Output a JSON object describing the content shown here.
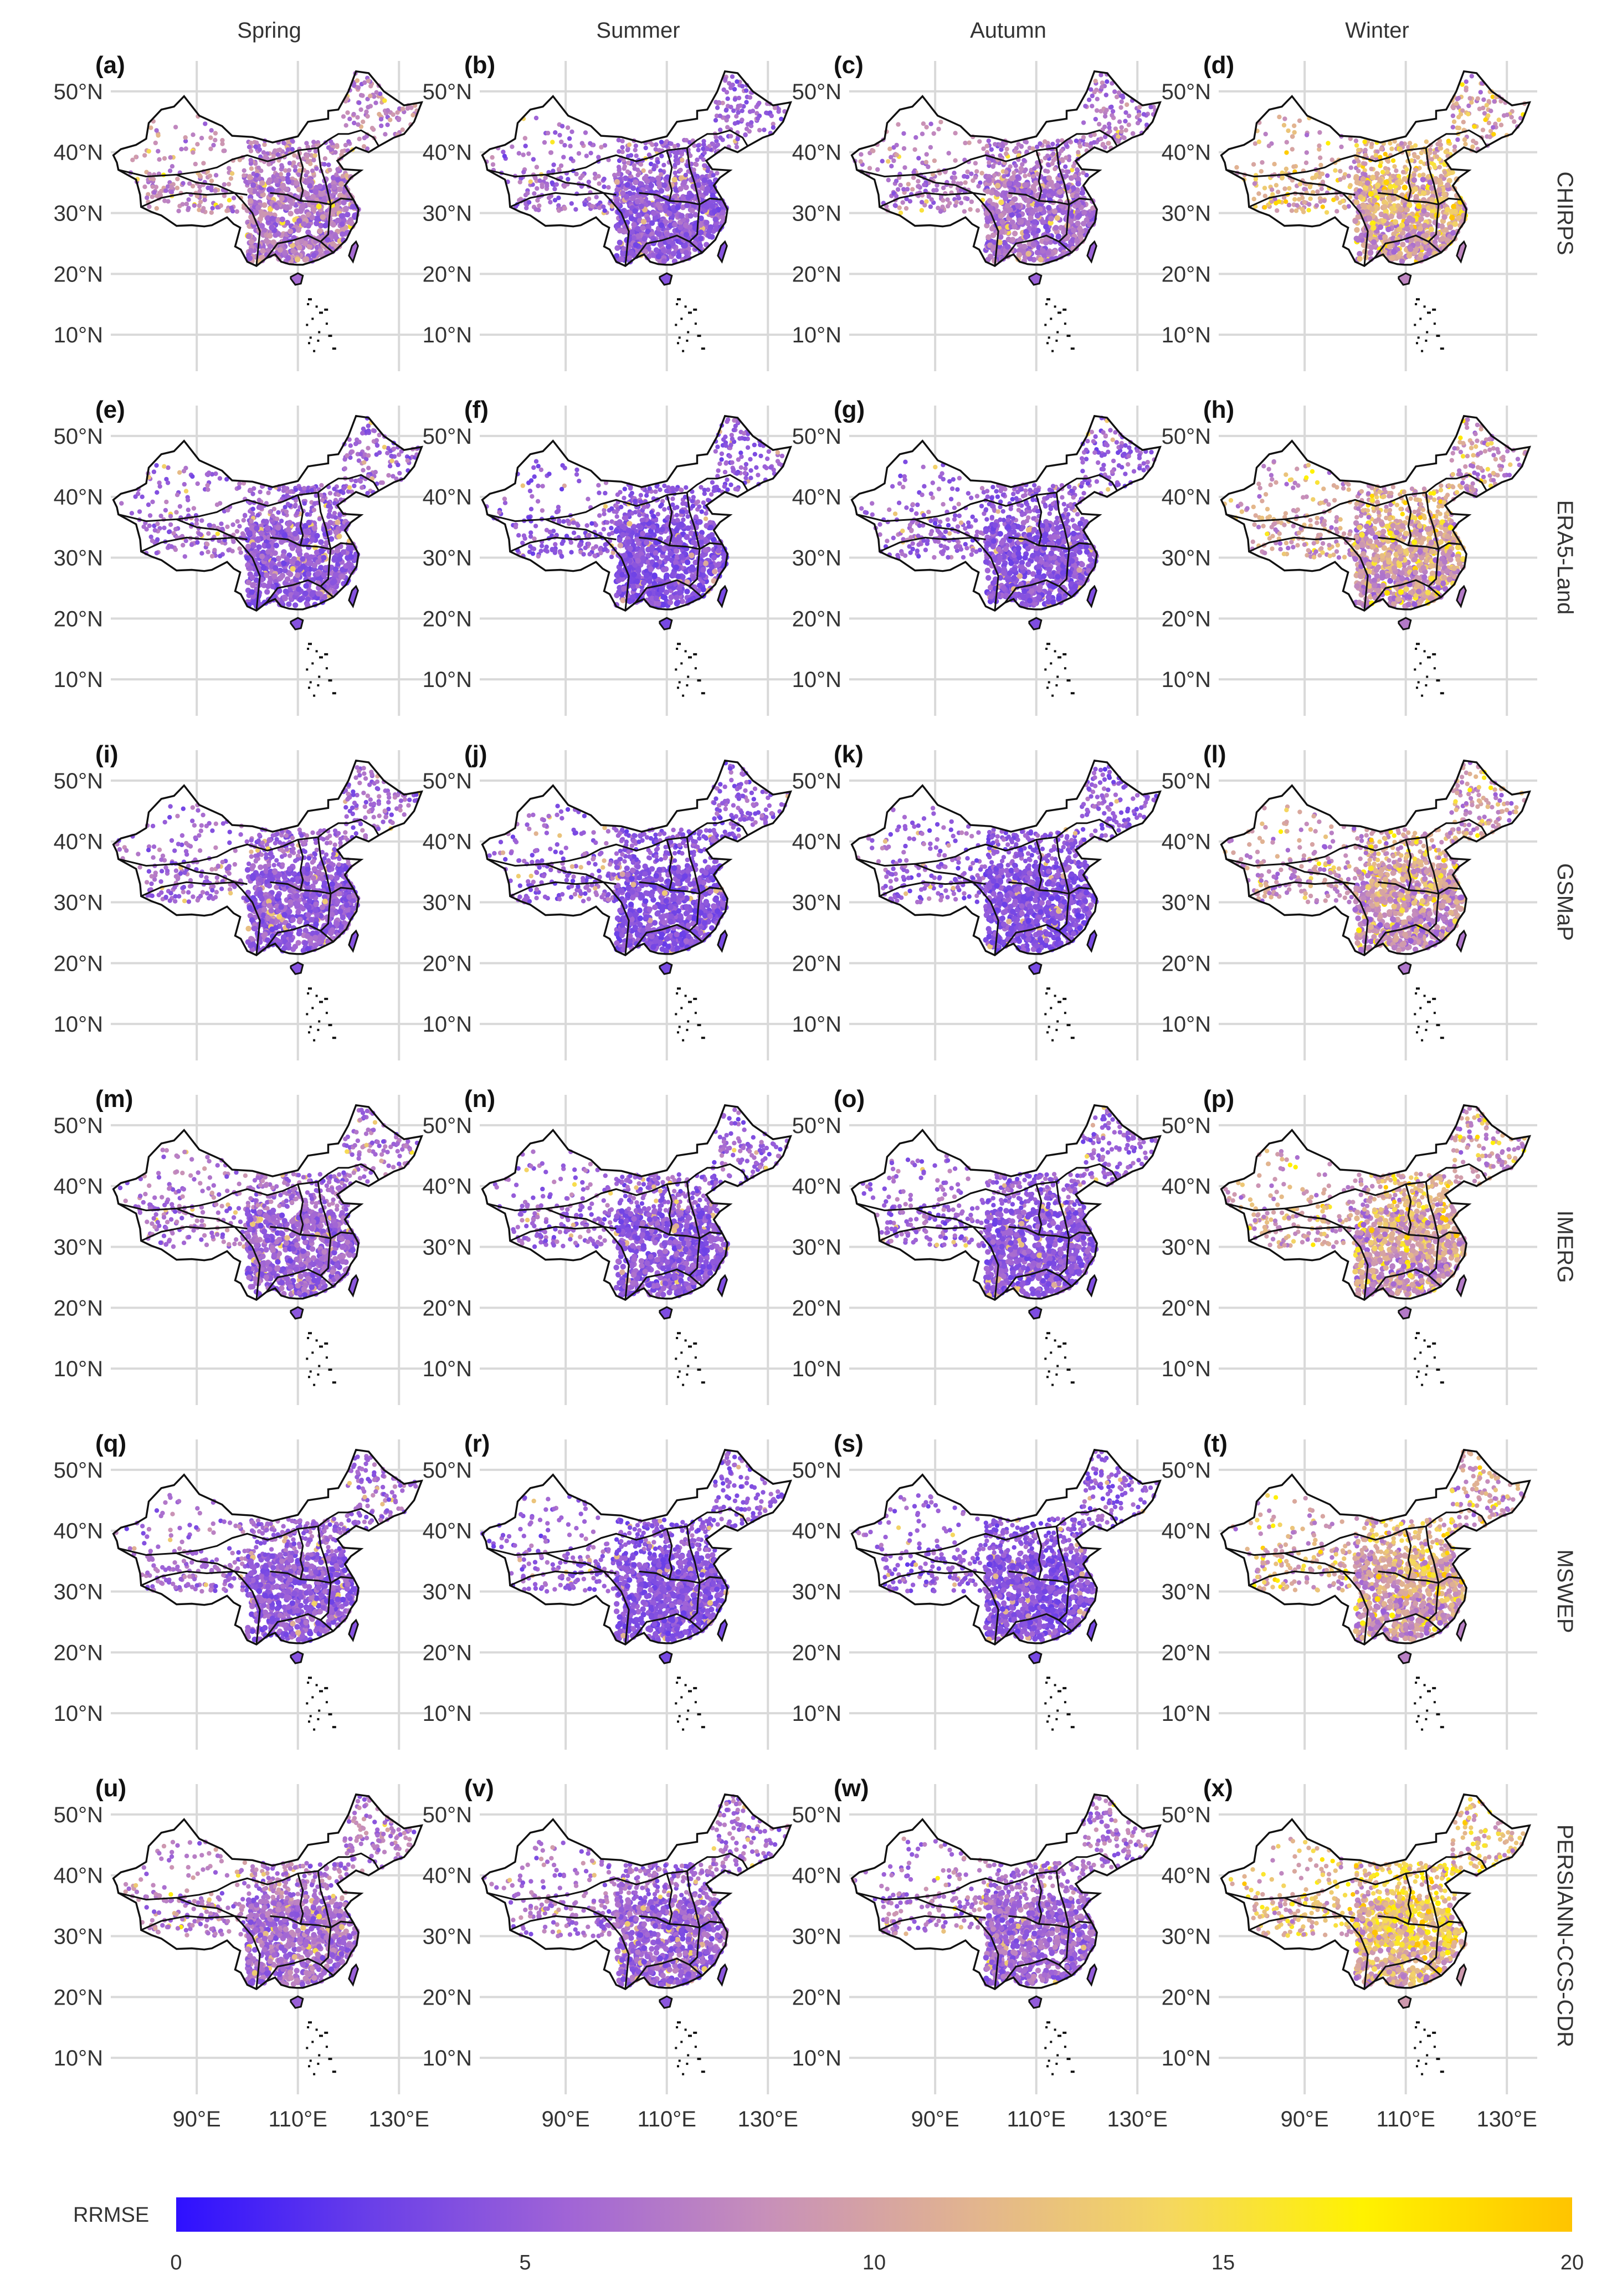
{
  "figure": {
    "columns": [
      "Spring",
      "Summer",
      "Autumn",
      "Winter"
    ],
    "rows": [
      "CHIRPS",
      "ERA5-Land",
      "GSMaP",
      "IMERG",
      "MSWEP",
      "PERSIANN-CCS-CDR"
    ],
    "panel_labels": [
      "(a)",
      "(b)",
      "(c)",
      "(d)",
      "(e)",
      "(f)",
      "(g)",
      "(h)",
      "(i)",
      "(j)",
      "(k)",
      "(l)",
      "(m)",
      "(n)",
      "(o)",
      "(p)",
      "(q)",
      "(r)",
      "(s)",
      "(t)",
      "(u)",
      "(v)",
      "(w)",
      "(x)"
    ],
    "lat_labels": [
      "50°N",
      "40°N",
      "30°N",
      "20°N",
      "10°N"
    ],
    "lon_labels": [
      "90°E",
      "110°E",
      "130°E"
    ],
    "map_extent": {
      "lon_min": 73,
      "lon_max": 136,
      "lat_min": 4,
      "lat_max": 55
    }
  },
  "legend": {
    "title": "RRMSE",
    "range": [
      0,
      20
    ],
    "ticks": [
      "0",
      "5",
      "10",
      "15",
      "20"
    ],
    "colors": [
      "#2e10ff",
      "#6a3fe8",
      "#a064d6",
      "#c78fba",
      "#e2b48f",
      "#f5d760",
      "#fff200",
      "#ffc400"
    ]
  },
  "panel_intensity": [
    [
      0.34,
      0.24,
      0.3,
      0.44
    ],
    [
      0.24,
      0.2,
      0.22,
      0.4
    ],
    [
      0.24,
      0.2,
      0.2,
      0.38
    ],
    [
      0.26,
      0.22,
      0.22,
      0.4
    ],
    [
      0.24,
      0.2,
      0.2,
      0.42
    ],
    [
      0.3,
      0.26,
      0.28,
      0.52
    ]
  ],
  "style": {
    "ocean": "#ffffff",
    "border": "#111111",
    "grid": "#d9d9d9"
  }
}
